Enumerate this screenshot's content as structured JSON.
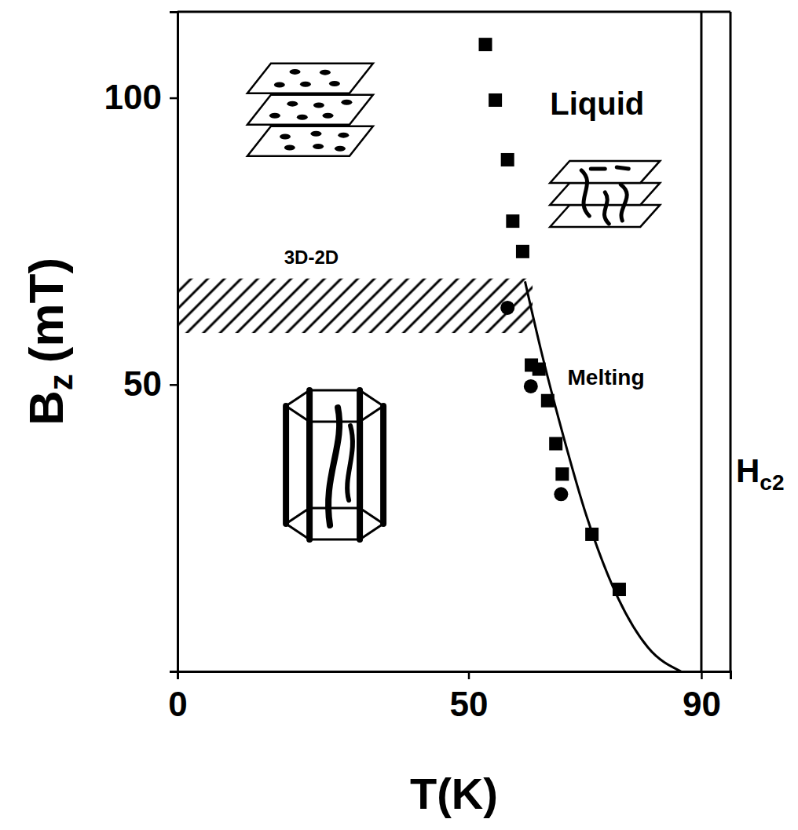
{
  "chart_data": {
    "type": "scatter",
    "xlabel": "T(K)",
    "ylabel": {
      "text": "B",
      "sub": "z",
      "unit": "(mT)"
    },
    "xlim": [
      0,
      95
    ],
    "xticks": [
      0,
      50,
      90
    ],
    "ylim": [
      0,
      115
    ],
    "yticks": [
      50,
      100
    ],
    "grid": false,
    "series": [
      {
        "type": "scatter",
        "marker": "square",
        "color": "#000000",
        "x": [
          52.9,
          54.6,
          56.7,
          57.6,
          59.3,
          60.8,
          62.1,
          63.6,
          65.0,
          66.1,
          71.2,
          75.9
        ],
        "values": [
          109.3,
          99.6,
          89.2,
          78.5,
          73.2,
          53.4,
          52.7,
          47.2,
          39.7,
          34.4,
          23.9,
          14.3
        ]
      },
      {
        "type": "scatter",
        "marker": "circle",
        "color": "#000000",
        "x": [
          56.7,
          60.7,
          65.9
        ],
        "values": [
          63.4,
          49.7,
          30.9
        ]
      },
      {
        "type": "line",
        "line_style": "solid",
        "color": "#000000",
        "x": [
          59.7,
          62.4,
          66.3,
          70.3,
          75.5,
          80.8,
          86.5
        ],
        "values": [
          68.0,
          56.2,
          41.0,
          27.0,
          13.2,
          4.2,
          0
        ]
      }
    ],
    "annotations": [
      "Liquid",
      "Melting"
    ],
    "crossover": {
      "label": "3D-2D",
      "T_range": [
        0,
        61
      ],
      "B_range": [
        59,
        68.5
      ]
    },
    "hc2": {
      "text": "H",
      "sub": "c2",
      "x": 90
    }
  }
}
